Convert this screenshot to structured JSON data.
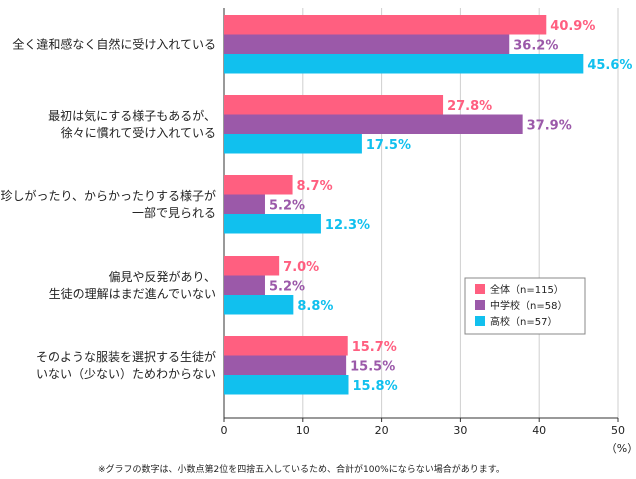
{
  "chart_data": {
    "type": "bar",
    "orientation": "horizontal",
    "categories": [
      [
        "全く違和感なく自然に受け入れている"
      ],
      [
        "最初は気にする様子もあるが、",
        "徐々に慣れて受け入れている"
      ],
      [
        "珍しがったり、からかったりする様子が",
        "一部で見られる"
      ],
      [
        "偏見や反発があり、",
        "生徒の理解はまだ進んでいない"
      ],
      [
        "そのような服装を選択する生徒が",
        "いない（少ない）ためわからない"
      ]
    ],
    "series": [
      {
        "name": "全体（n=115）",
        "color": "#ff5f80",
        "values": [
          40.9,
          27.8,
          8.7,
          7.0,
          15.7
        ],
        "labels": [
          "40.9%",
          "27.8%",
          "8.7%",
          "7.0%",
          "15.7%"
        ]
      },
      {
        "name": "中学校（n=58）",
        "color": "#9b59a9",
        "values": [
          36.2,
          37.9,
          5.2,
          5.2,
          15.5
        ],
        "labels": [
          "36.2%",
          "37.9%",
          "5.2%",
          "5.2%",
          "15.5%"
        ]
      },
      {
        "name": "高校（n=57）",
        "color": "#11c0ee",
        "values": [
          45.6,
          17.5,
          12.3,
          8.8,
          15.8
        ],
        "labels": [
          "45.6%",
          "17.5%",
          "12.3%",
          "8.8%",
          "15.8%"
        ]
      }
    ],
    "xlim": [
      0,
      50
    ],
    "xticks": [
      0,
      10,
      20,
      30,
      40,
      50
    ],
    "xunit": "（%）",
    "grid": true,
    "legend_position": "right"
  },
  "footnote": "※グラフの数字は、小数点第2位を四捨五入しているため、合計が100%にならない場合があります。"
}
